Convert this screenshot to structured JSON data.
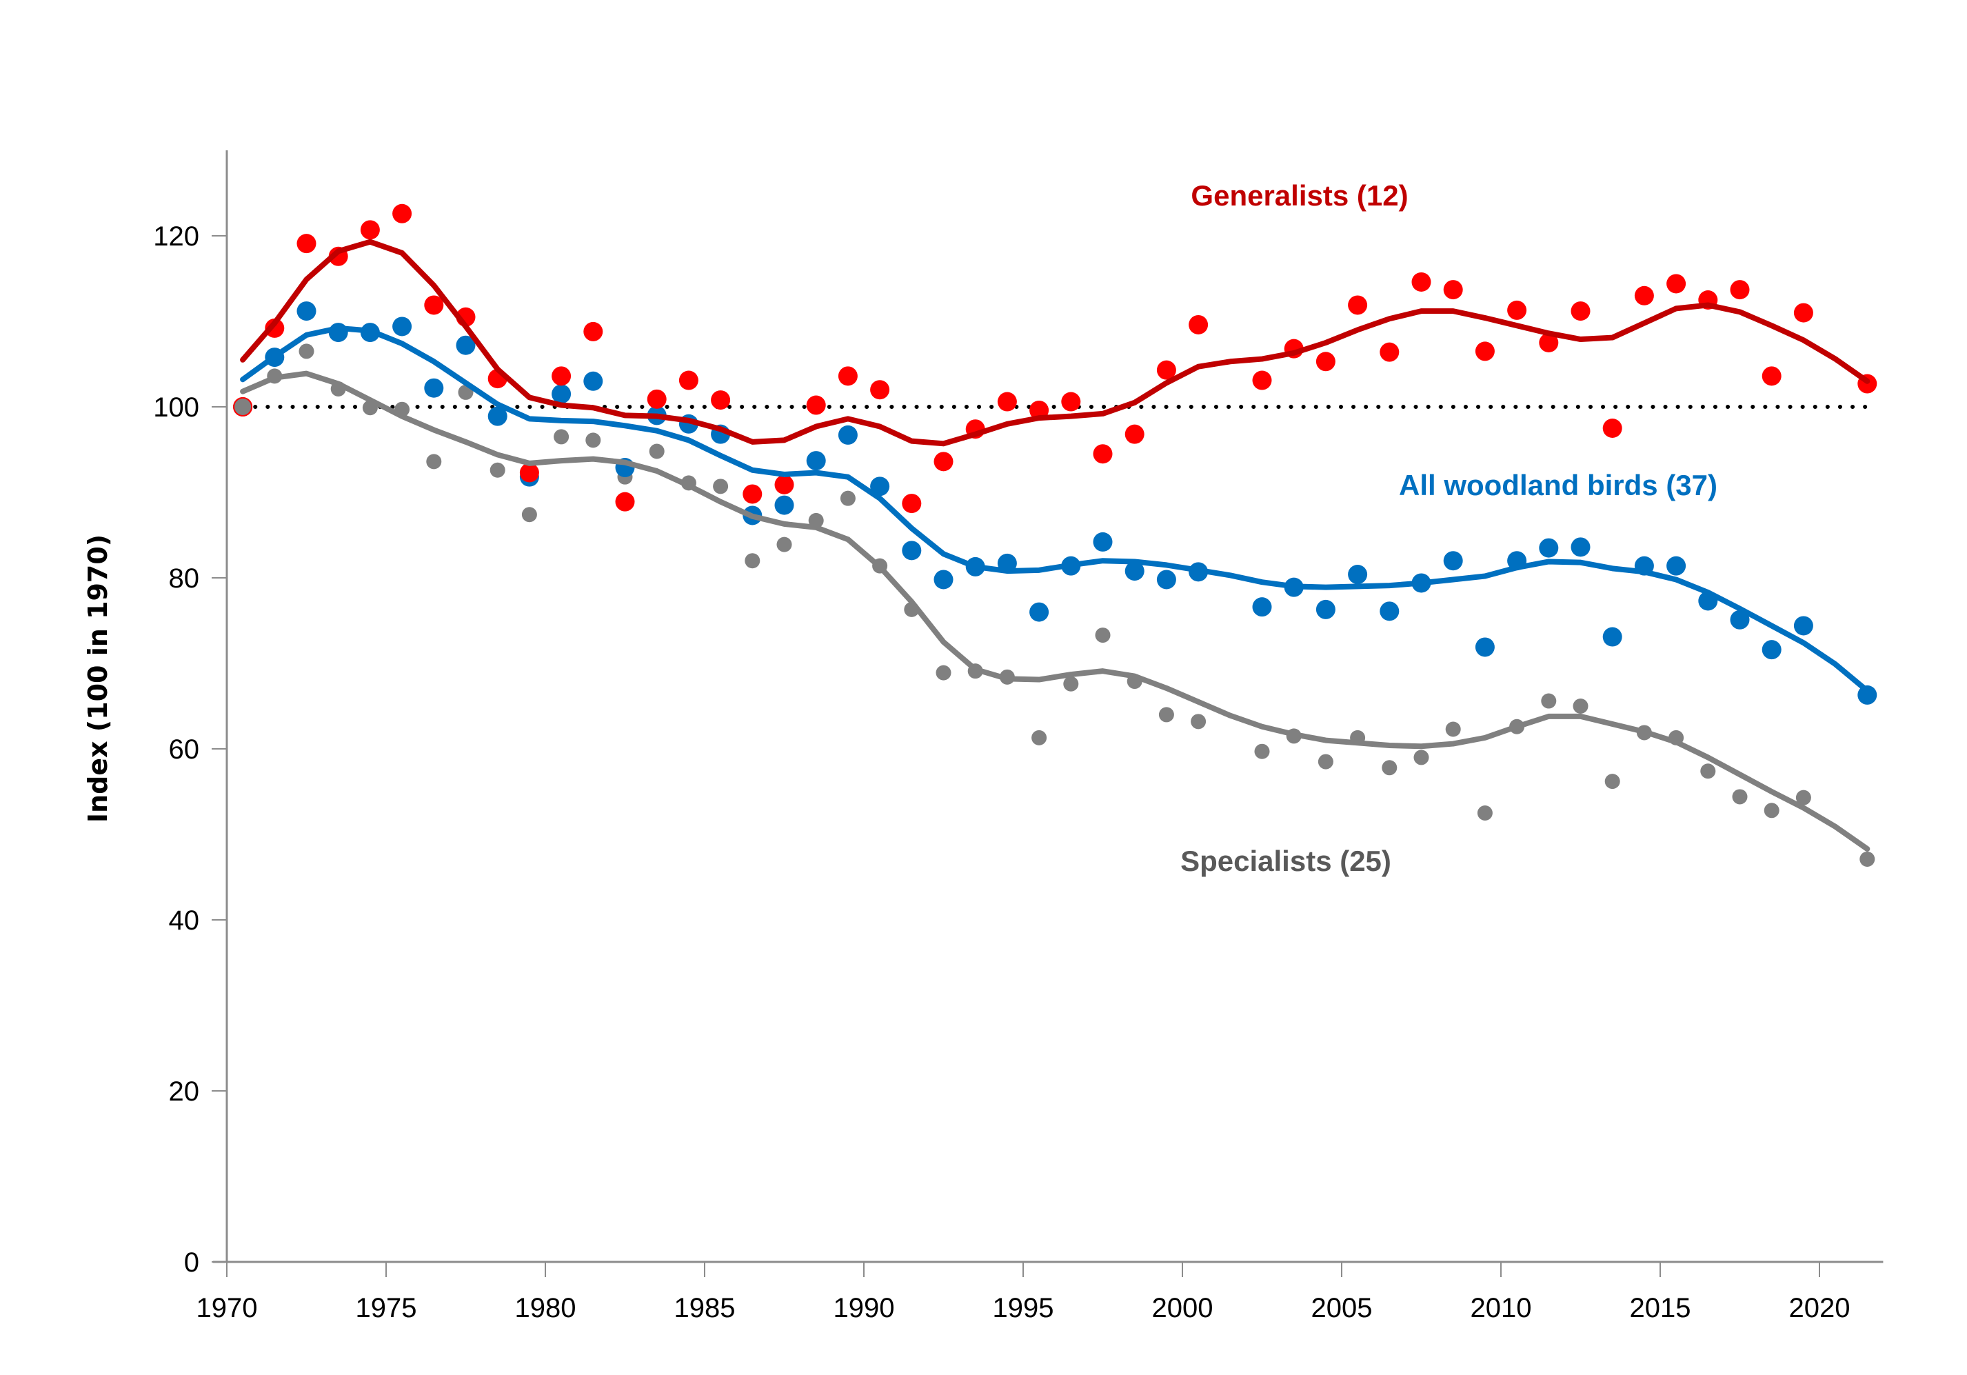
{
  "chart_data": {
    "type": "scatter",
    "title": "",
    "xlabel": "",
    "ylabel": "Index (100 in 1970)",
    "xlim": [
      1970,
      2022
    ],
    "ylim": [
      0,
      130
    ],
    "xticks": [
      1970,
      1975,
      1980,
      1985,
      1990,
      1995,
      2000,
      2005,
      2010,
      2015,
      2020
    ],
    "yticks": [
      0,
      20,
      40,
      60,
      80,
      100,
      120
    ],
    "grid": false,
    "legend": "inline-labels",
    "reference_line": {
      "value": 100,
      "style": "dotted",
      "color": "#000000"
    },
    "series": [
      {
        "name": "Generalists (12)",
        "label": "Generalists (12)",
        "label_position": "top-center",
        "dot_color": "#FF0000",
        "line_color": "#C00000",
        "years": [
          1970,
          1971,
          1972,
          1973,
          1974,
          1975,
          1976,
          1977,
          1978,
          1979,
          1980,
          1981,
          1982,
          1983,
          1984,
          1985,
          1986,
          1987,
          1988,
          1989,
          1990,
          1991,
          1992,
          1993,
          1994,
          1995,
          1996,
          1997,
          1998,
          1999,
          2000,
          2002,
          2003,
          2004,
          2005,
          2006,
          2007,
          2008,
          2009,
          2010,
          2011,
          2012,
          2013,
          2014,
          2015,
          2016,
          2017,
          2018,
          2019,
          2021
        ],
        "values": [
          100,
          109.2,
          119.1,
          117.6,
          120.7,
          122.6,
          111.9,
          110.5,
          103.3,
          92.3,
          103.6,
          108.8,
          88.9,
          100.9,
          103.1,
          100.8,
          89.8,
          90.9,
          100.2,
          103.6,
          102.0,
          88.7,
          93.6,
          97.4,
          100.6,
          99.6,
          100.6,
          94.5,
          96.8,
          104.3,
          109.6,
          103.1,
          106.8,
          105.3,
          111.9,
          106.4,
          114.6,
          113.7,
          106.5,
          111.3,
          107.5,
          111.2,
          97.5,
          113.0,
          114.4,
          112.5,
          113.7,
          103.6,
          111.0,
          102.7
        ],
        "trend_years": [
          1970,
          1971,
          1972,
          1973,
          1974,
          1975,
          1976,
          1977,
          1978,
          1979,
          1980,
          1981,
          1982,
          1983,
          1984,
          1985,
          1986,
          1987,
          1988,
          1989,
          1990,
          1991,
          1992,
          1993,
          1994,
          1995,
          1996,
          1997,
          1998,
          1999,
          2000,
          2001,
          2002,
          2003,
          2004,
          2005,
          2006,
          2007,
          2008,
          2009,
          2010,
          2011,
          2012,
          2013,
          2014,
          2015,
          2016,
          2017,
          2018,
          2019,
          2020,
          2021
        ],
        "trend": [
          105.5,
          109.8,
          114.9,
          118.2,
          119.3,
          118.0,
          114.2,
          109.4,
          104.4,
          101.1,
          100.2,
          99.9,
          99.0,
          98.9,
          98.4,
          97.4,
          95.9,
          96.1,
          97.7,
          98.6,
          97.7,
          96.0,
          95.7,
          96.8,
          98.0,
          98.7,
          98.9,
          99.2,
          100.5,
          102.8,
          104.7,
          105.3,
          105.6,
          106.3,
          107.5,
          109.0,
          110.3,
          111.2,
          111.2,
          110.4,
          109.5,
          108.6,
          107.9,
          108.1,
          109.8,
          111.5,
          111.9,
          111.1,
          109.5,
          107.8,
          105.6,
          103.0
        ]
      },
      {
        "name": "All woodland birds (37)",
        "label": "All woodland birds (37)",
        "label_position": "right-middle",
        "dot_color": "#0070C0",
        "line_color": "#0070C0",
        "years": [
          1970,
          1971,
          1972,
          1973,
          1974,
          1975,
          1976,
          1977,
          1978,
          1979,
          1980,
          1981,
          1982,
          1983,
          1984,
          1985,
          1986,
          1987,
          1988,
          1989,
          1990,
          1991,
          1992,
          1993,
          1994,
          1995,
          1996,
          1997,
          1998,
          1999,
          2000,
          2002,
          2003,
          2004,
          2005,
          2006,
          2007,
          2008,
          2009,
          2010,
          2011,
          2012,
          2013,
          2014,
          2015,
          2016,
          2017,
          2018,
          2019,
          2021
        ],
        "values": [
          100,
          105.8,
          111.2,
          108.7,
          108.7,
          109.4,
          102.2,
          107.2,
          98.9,
          91.8,
          101.5,
          103.0,
          92.9,
          99.0,
          98.0,
          96.8,
          87.3,
          88.5,
          93.7,
          96.7,
          90.7,
          83.2,
          79.8,
          81.3,
          81.7,
          76.0,
          81.4,
          84.2,
          80.8,
          79.8,
          80.7,
          76.6,
          78.9,
          76.3,
          80.4,
          76.1,
          79.4,
          82.0,
          71.9,
          82.0,
          83.5,
          83.6,
          73.1,
          81.4,
          81.4,
          77.3,
          75.1,
          71.6,
          74.4,
          66.3
        ],
        "trend_years": [
          1970,
          1971,
          1972,
          1973,
          1974,
          1975,
          1976,
          1977,
          1978,
          1979,
          1980,
          1981,
          1982,
          1983,
          1984,
          1985,
          1986,
          1987,
          1988,
          1989,
          1990,
          1991,
          1992,
          1993,
          1994,
          1995,
          1996,
          1997,
          1998,
          1999,
          2000,
          2001,
          2002,
          2003,
          2004,
          2005,
          2006,
          2007,
          2008,
          2009,
          2010,
          2011,
          2012,
          2013,
          2014,
          2015,
          2016,
          2017,
          2018,
          2019,
          2020,
          2021
        ],
        "trend": [
          103.2,
          105.9,
          108.4,
          109.2,
          108.9,
          107.4,
          105.3,
          102.8,
          100.3,
          98.6,
          98.4,
          98.3,
          97.8,
          97.2,
          96.1,
          94.3,
          92.6,
          92.1,
          92.3,
          91.8,
          89.3,
          85.8,
          82.8,
          81.3,
          80.8,
          80.9,
          81.5,
          82.0,
          81.9,
          81.5,
          80.9,
          80.3,
          79.5,
          79.0,
          78.9,
          79.0,
          79.1,
          79.4,
          79.8,
          80.2,
          81.2,
          81.9,
          81.8,
          81.1,
          80.7,
          79.8,
          78.3,
          76.4,
          74.4,
          72.4,
          69.9,
          66.8
        ]
      },
      {
        "name": "Specialists (25)",
        "label": "Specialists  (25)",
        "label_position": "bottom-center",
        "dot_color": "#808080",
        "line_color": "#808080",
        "label_color": "#595959",
        "years": [
          1970,
          1971,
          1972,
          1973,
          1974,
          1975,
          1976,
          1977,
          1978,
          1979,
          1980,
          1981,
          1982,
          1983,
          1984,
          1985,
          1986,
          1987,
          1988,
          1989,
          1990,
          1991,
          1992,
          1993,
          1994,
          1995,
          1996,
          1997,
          1998,
          1999,
          2000,
          2002,
          2003,
          2004,
          2005,
          2006,
          2007,
          2008,
          2009,
          2010,
          2011,
          2012,
          2013,
          2014,
          2015,
          2016,
          2017,
          2018,
          2019,
          2021
        ],
        "values": [
          100,
          103.6,
          106.5,
          102.1,
          99.9,
          99.7,
          93.6,
          101.7,
          92.6,
          87.4,
          96.5,
          96.1,
          91.8,
          94.8,
          91.1,
          90.7,
          82.0,
          83.9,
          86.7,
          89.3,
          81.4,
          76.3,
          68.9,
          69.1,
          68.4,
          61.3,
          67.6,
          73.3,
          67.9,
          64.0,
          63.2,
          59.7,
          61.5,
          58.5,
          61.3,
          57.8,
          59.0,
          62.3,
          52.5,
          62.6,
          65.6,
          65.0,
          56.2,
          61.9,
          61.3,
          57.4,
          54.4,
          52.8,
          54.3,
          47.1
        ],
        "trend_years": [
          1970,
          1971,
          1972,
          1973,
          1974,
          1975,
          1976,
          1977,
          1978,
          1979,
          1980,
          1981,
          1982,
          1983,
          1984,
          1985,
          1986,
          1987,
          1988,
          1989,
          1990,
          1991,
          1992,
          1993,
          1994,
          1995,
          1996,
          1997,
          1998,
          1999,
          2000,
          2001,
          2002,
          2003,
          2004,
          2005,
          2006,
          2007,
          2008,
          2009,
          2010,
          2011,
          2012,
          2013,
          2014,
          2015,
          2016,
          2017,
          2018,
          2019,
          2020,
          2021
        ],
        "trend": [
          101.8,
          103.4,
          103.9,
          102.7,
          100.8,
          98.9,
          97.3,
          95.9,
          94.4,
          93.4,
          93.7,
          93.9,
          93.5,
          92.5,
          90.8,
          88.9,
          87.2,
          86.3,
          85.9,
          84.5,
          81.3,
          77.2,
          72.5,
          69.3,
          68.2,
          68.1,
          68.7,
          69.1,
          68.5,
          67.1,
          65.5,
          63.9,
          62.6,
          61.7,
          61.0,
          60.7,
          60.4,
          60.3,
          60.6,
          61.3,
          62.6,
          63.8,
          63.8,
          62.9,
          62.0,
          60.8,
          59.0,
          57.0,
          55.0,
          53.1,
          50.9,
          48.3
        ]
      }
    ]
  }
}
